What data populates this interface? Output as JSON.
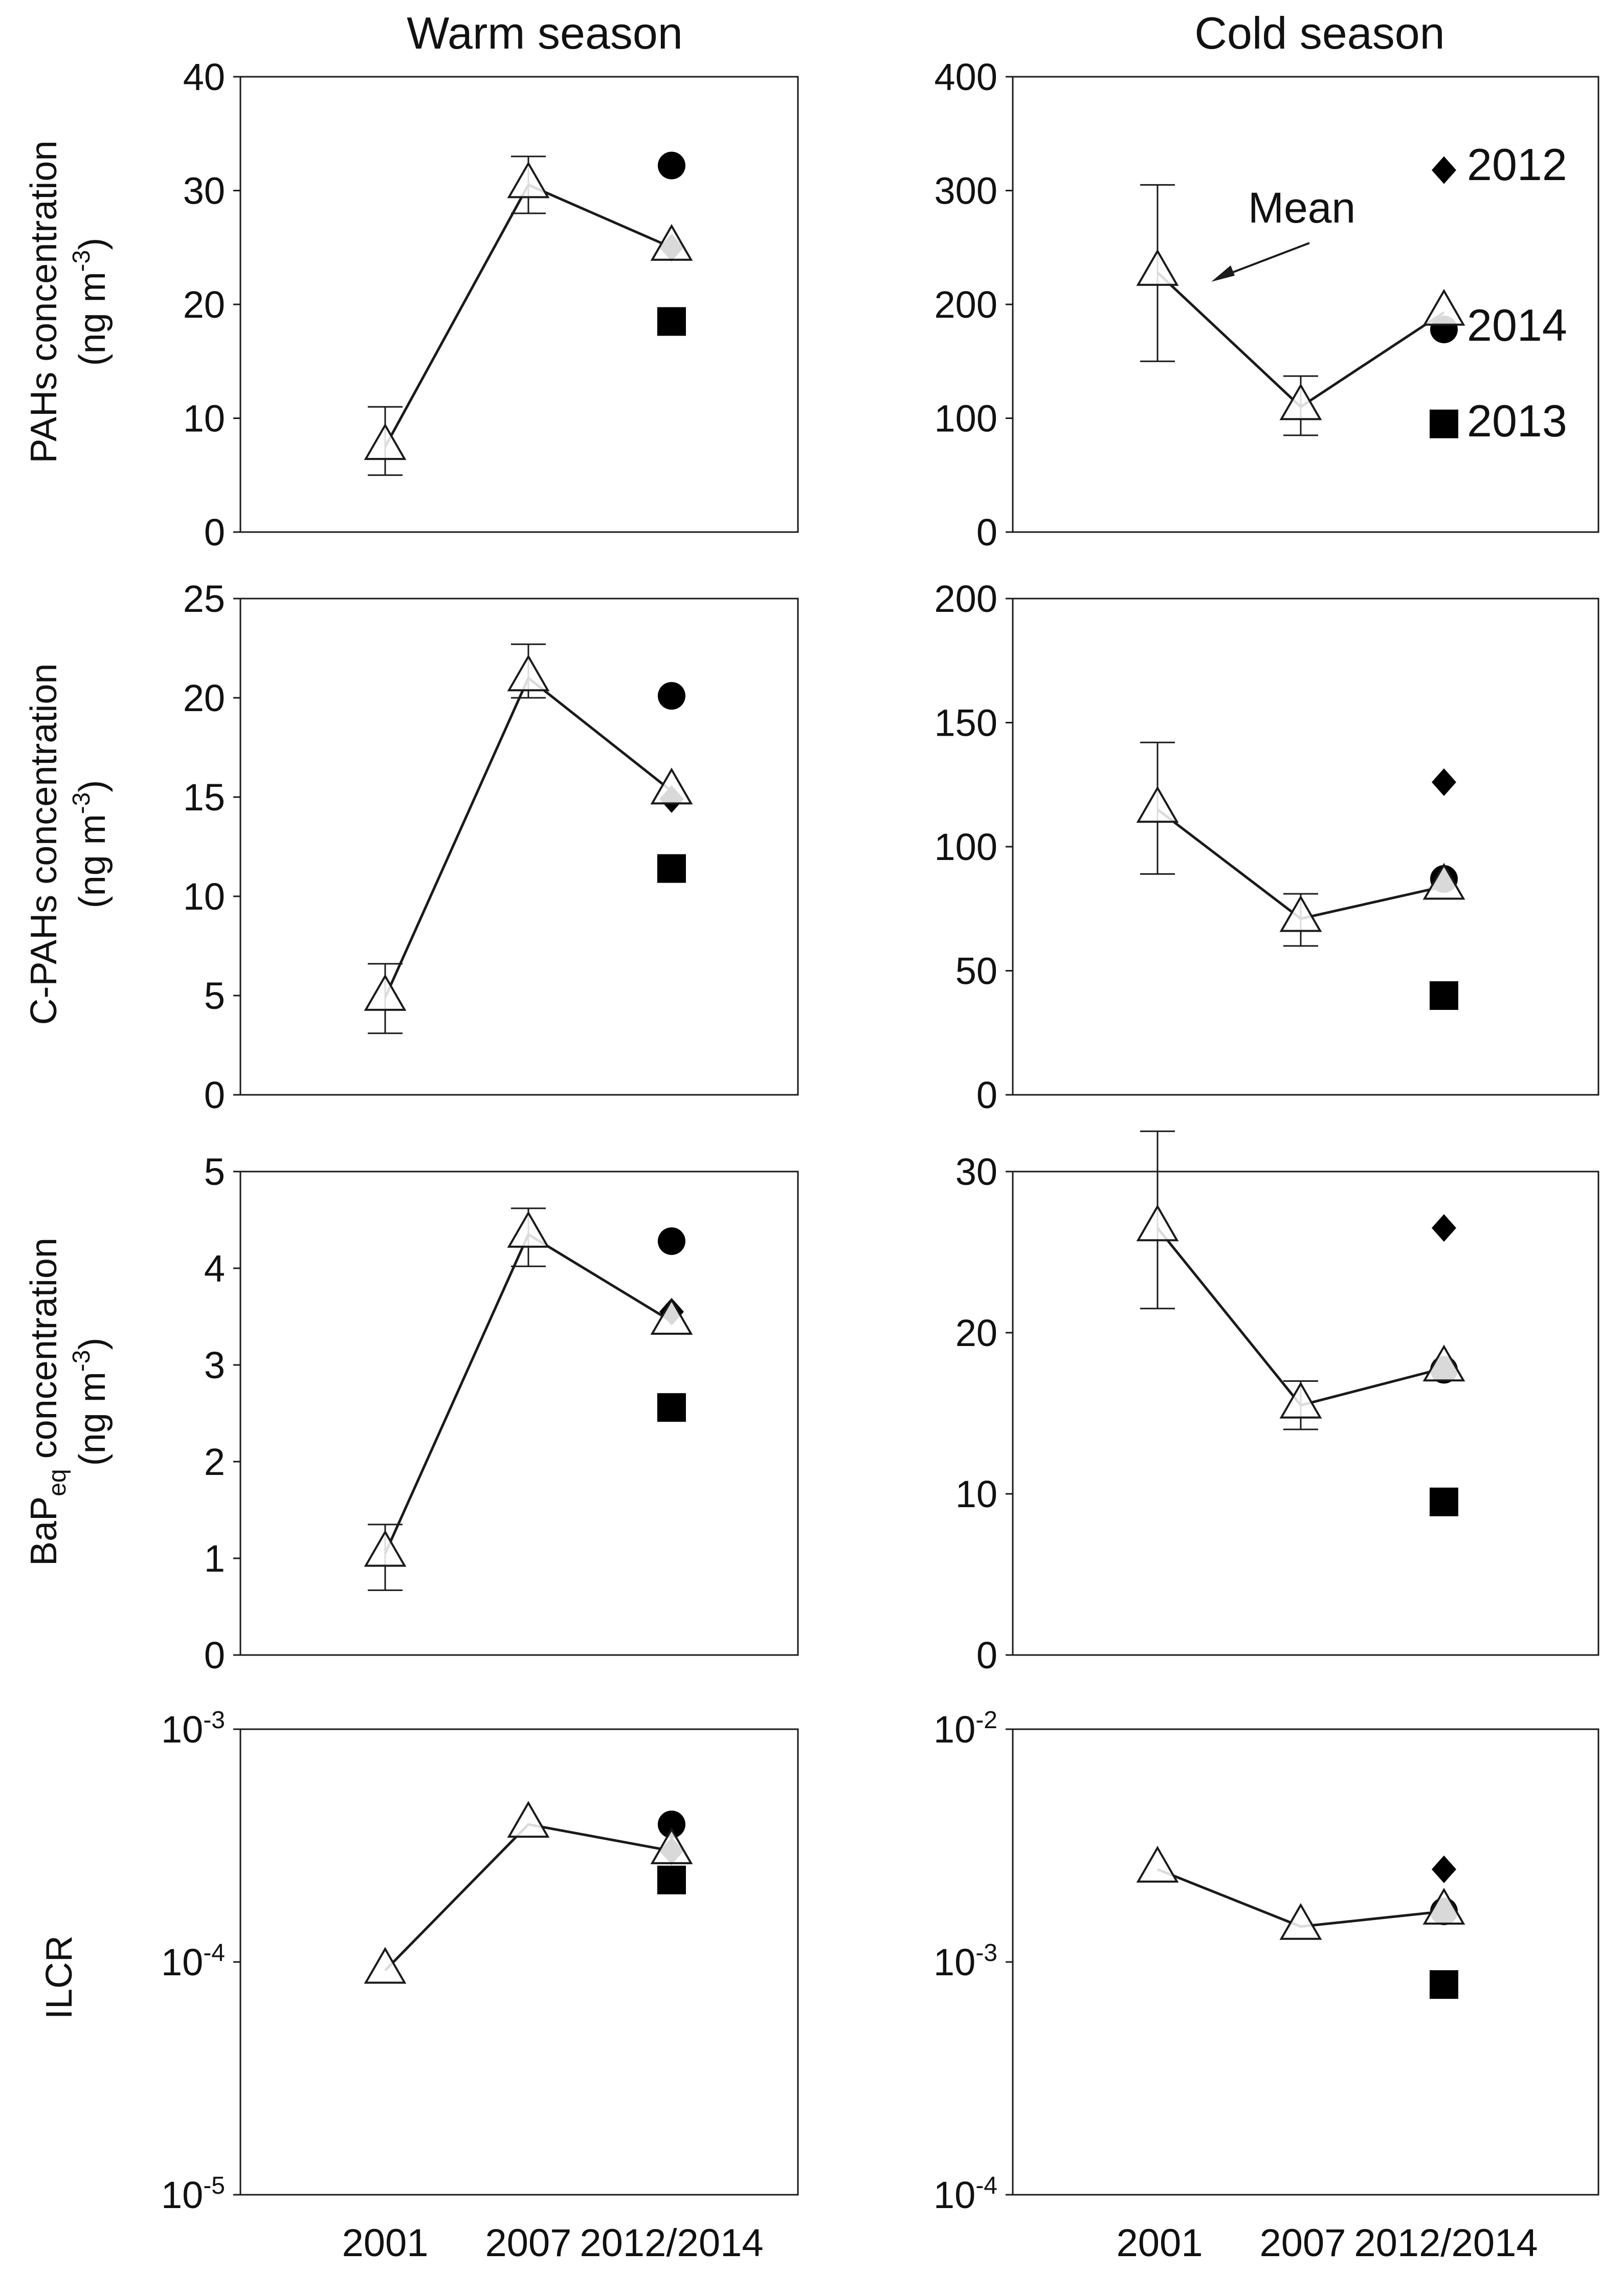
{
  "figure": {
    "column_titles": [
      "Warm season",
      "Cold season"
    ],
    "x_categories": [
      "2001",
      "2007",
      "2012/2014"
    ],
    "row_ylabels": [
      {
        "line1": "PAHs concentration",
        "line2": "(ng m",
        "sup": "-3",
        "close": ")"
      },
      {
        "line1": "C-PAHs concentration",
        "line2": "(ng m",
        "sup": "-3",
        "close": ")"
      },
      {
        "line1_main": "BaP",
        "line1_sub": "eq",
        "line1_rest": " concentration",
        "line2": "(ng m",
        "sup": "-3",
        "close": ")"
      },
      {
        "line1": "ILCR"
      }
    ],
    "legend": {
      "mean_label": "Mean",
      "year_labels": [
        "2012",
        "2014",
        "2013"
      ]
    },
    "colors": {
      "line": "#1a1a1a",
      "marker_fill": "#ffffff",
      "solid_marker": "#000000",
      "axis": "#1a1a1a"
    }
  },
  "chart_data": [
    {
      "type": "scatter",
      "row": 0,
      "col": 0,
      "title": "Warm season",
      "ylabel": "PAHs concentration (ng m-3)",
      "ylim": [
        0,
        40
      ],
      "yticks": [
        {
          "v": 0,
          "label": "0"
        },
        {
          "v": 10,
          "label": "10"
        },
        {
          "v": 20,
          "label": "20"
        },
        {
          "v": 30,
          "label": "30"
        },
        {
          "v": 40,
          "label": "40"
        }
      ],
      "series": [
        {
          "name": "Mean",
          "marker": "triangle",
          "x": [
            "2001",
            "2007",
            "2012/2014"
          ],
          "values": [
            7.5,
            30.5,
            25
          ],
          "err_low": [
            5,
            28,
            null
          ],
          "err_high": [
            11,
            33,
            null
          ]
        },
        {
          "name": "2012",
          "marker": "diamond",
          "x": [
            "2012/2014"
          ],
          "values": [
            25
          ]
        },
        {
          "name": "2014",
          "marker": "circle",
          "x": [
            "2012/2014"
          ],
          "values": [
            32.2
          ]
        },
        {
          "name": "2013",
          "marker": "square",
          "x": [
            "2012/2014"
          ],
          "values": [
            18.5
          ]
        }
      ]
    },
    {
      "type": "scatter",
      "row": 0,
      "col": 1,
      "title": "Cold season",
      "ylabel": "PAHs concentration (ng m-3)",
      "ylim": [
        0,
        400
      ],
      "yticks": [
        {
          "v": 0,
          "label": "0"
        },
        {
          "v": 100,
          "label": "100"
        },
        {
          "v": 200,
          "label": "200"
        },
        {
          "v": 300,
          "label": "300"
        },
        {
          "v": 400,
          "label": "400"
        }
      ],
      "series": [
        {
          "name": "Mean",
          "marker": "triangle",
          "x": [
            "2001",
            "2007",
            "2012/2014"
          ],
          "values": [
            228,
            110,
            193
          ],
          "err_low": [
            150,
            85,
            null
          ],
          "err_high": [
            305,
            137,
            null
          ]
        },
        {
          "name": "2012",
          "marker": "diamond",
          "x": [
            "2012/2014"
          ],
          "values": [
            318
          ]
        },
        {
          "name": "2014",
          "marker": "circle",
          "x": [
            "2012/2014"
          ],
          "values": [
            178
          ]
        },
        {
          "name": "2013",
          "marker": "square",
          "x": [
            "2012/2014"
          ],
          "values": [
            95
          ]
        }
      ],
      "annotations": [
        {
          "text": "Mean",
          "arrow_to_category": "2001"
        }
      ]
    },
    {
      "type": "scatter",
      "row": 1,
      "col": 0,
      "title": "Warm season",
      "ylabel": "C-PAHs concentration (ng m-3)",
      "ylim": [
        0,
        25
      ],
      "yticks": [
        {
          "v": 0,
          "label": "0"
        },
        {
          "v": 5,
          "label": "5"
        },
        {
          "v": 10,
          "label": "10"
        },
        {
          "v": 15,
          "label": "15"
        },
        {
          "v": 20,
          "label": "20"
        },
        {
          "v": 25,
          "label": "25"
        }
      ],
      "series": [
        {
          "name": "Mean",
          "marker": "triangle",
          "x": [
            "2001",
            "2007",
            "2012/2014"
          ],
          "values": [
            4.9,
            21,
            15.3
          ],
          "err_low": [
            3.1,
            20,
            null
          ],
          "err_high": [
            6.6,
            22.7,
            null
          ]
        },
        {
          "name": "2012",
          "marker": "diamond",
          "x": [
            "2012/2014"
          ],
          "values": [
            14.9
          ]
        },
        {
          "name": "2014",
          "marker": "circle",
          "x": [
            "2012/2014"
          ],
          "values": [
            20.1
          ]
        },
        {
          "name": "2013",
          "marker": "square",
          "x": [
            "2012/2014"
          ],
          "values": [
            11.4
          ]
        }
      ]
    },
    {
      "type": "scatter",
      "row": 1,
      "col": 1,
      "title": "Cold season",
      "ylabel": "C-PAHs concentration (ng m-3)",
      "ylim": [
        0,
        200
      ],
      "yticks": [
        {
          "v": 0,
          "label": "0"
        },
        {
          "v": 50,
          "label": "50"
        },
        {
          "v": 100,
          "label": "100"
        },
        {
          "v": 150,
          "label": "150"
        },
        {
          "v": 200,
          "label": "200"
        }
      ],
      "series": [
        {
          "name": "Mean",
          "marker": "triangle",
          "x": [
            "2001",
            "2007",
            "2012/2014"
          ],
          "values": [
            115,
            71,
            84
          ],
          "err_low": [
            89,
            60,
            null
          ],
          "err_high": [
            142,
            81,
            null
          ]
        },
        {
          "name": "2012",
          "marker": "diamond",
          "x": [
            "2012/2014"
          ],
          "values": [
            126
          ]
        },
        {
          "name": "2014",
          "marker": "circle",
          "x": [
            "2012/2014"
          ],
          "values": [
            87
          ]
        },
        {
          "name": "2013",
          "marker": "square",
          "x": [
            "2012/2014"
          ],
          "values": [
            40
          ]
        }
      ]
    },
    {
      "type": "scatter",
      "row": 2,
      "col": 0,
      "title": "Warm season",
      "ylabel": "BaPeq concentration (ng m-3)",
      "ylim": [
        0,
        5
      ],
      "yticks": [
        {
          "v": 0,
          "label": "0"
        },
        {
          "v": 1,
          "label": "1"
        },
        {
          "v": 2,
          "label": "2"
        },
        {
          "v": 3,
          "label": "3"
        },
        {
          "v": 4,
          "label": "4"
        },
        {
          "v": 5,
          "label": "5"
        }
      ],
      "series": [
        {
          "name": "Mean",
          "marker": "triangle",
          "x": [
            "2001",
            "2007",
            "2012/2014"
          ],
          "values": [
            1.05,
            4.35,
            3.45
          ],
          "err_low": [
            0.67,
            4.02,
            null
          ],
          "err_high": [
            1.35,
            4.62,
            null
          ]
        },
        {
          "name": "2012",
          "marker": "diamond",
          "x": [
            "2012/2014"
          ],
          "values": [
            3.55
          ]
        },
        {
          "name": "2014",
          "marker": "circle",
          "x": [
            "2012/2014"
          ],
          "values": [
            4.28
          ]
        },
        {
          "name": "2013",
          "marker": "square",
          "x": [
            "2012/2014"
          ],
          "values": [
            2.56
          ]
        }
      ]
    },
    {
      "type": "scatter",
      "row": 2,
      "col": 1,
      "title": "Cold season",
      "ylabel": "BaPeq concentration (ng m-3)",
      "ylim": [
        0,
        30
      ],
      "yticks": [
        {
          "v": 0,
          "label": "0"
        },
        {
          "v": 10,
          "label": "10"
        },
        {
          "v": 20,
          "label": "20"
        },
        {
          "v": 30,
          "label": "30"
        }
      ],
      "series": [
        {
          "name": "Mean",
          "marker": "triangle",
          "x": [
            "2001",
            "2007",
            "2012/2014"
          ],
          "values": [
            26.5,
            15.5,
            17.8
          ],
          "err_low": [
            21.5,
            14,
            null
          ],
          "err_high": [
            32.5,
            17,
            null
          ]
        },
        {
          "name": "2012",
          "marker": "diamond",
          "x": [
            "2012/2014"
          ],
          "values": [
            26.5
          ]
        },
        {
          "name": "2014",
          "marker": "circle",
          "x": [
            "2012/2014"
          ],
          "values": [
            17.7
          ]
        },
        {
          "name": "2013",
          "marker": "square",
          "x": [
            "2012/2014"
          ],
          "values": [
            9.5
          ]
        }
      ]
    },
    {
      "type": "scatter",
      "row": 3,
      "col": 0,
      "title": "Warm season",
      "ylabel": "ILCR",
      "yscale": "log",
      "ylim": [
        1e-05,
        0.001
      ],
      "yticks": [
        {
          "v": 1e-05,
          "base": "10",
          "exp": "-5"
        },
        {
          "v": 0.0001,
          "base": "10",
          "exp": "-4"
        },
        {
          "v": 0.001,
          "base": "10",
          "exp": "-3"
        }
      ],
      "series": [
        {
          "name": "Mean",
          "marker": "triangle",
          "x": [
            "2001",
            "2007",
            "2012/2014"
          ],
          "values": [
            9.2e-05,
            0.00039,
            0.0003
          ]
        },
        {
          "name": "2012",
          "marker": "diamond",
          "x": [
            "2012/2014"
          ],
          "values": [
            0.0003
          ]
        },
        {
          "name": "2014",
          "marker": "circle",
          "x": [
            "2012/2014"
          ],
          "values": [
            0.00039
          ]
        },
        {
          "name": "2013",
          "marker": "square",
          "x": [
            "2012/2014"
          ],
          "values": [
            0.000225
          ]
        }
      ]
    },
    {
      "type": "scatter",
      "row": 3,
      "col": 1,
      "title": "Cold season",
      "ylabel": "ILCR",
      "yscale": "log",
      "ylim": [
        0.0001,
        0.01
      ],
      "yticks": [
        {
          "v": 0.0001,
          "base": "10",
          "exp": "-4"
        },
        {
          "v": 0.001,
          "base": "10",
          "exp": "-3"
        },
        {
          "v": 0.01,
          "base": "10",
          "exp": "-2"
        }
      ],
      "series": [
        {
          "name": "Mean",
          "marker": "triangle",
          "x": [
            "2001",
            "2007",
            "2012/2014"
          ],
          "values": [
            0.0025,
            0.00142,
            0.00165
          ]
        },
        {
          "name": "2012",
          "marker": "diamond",
          "x": [
            "2012/2014"
          ],
          "values": [
            0.0025
          ]
        },
        {
          "name": "2014",
          "marker": "circle",
          "x": [
            "2012/2014"
          ],
          "values": [
            0.00165
          ]
        },
        {
          "name": "2013",
          "marker": "square",
          "x": [
            "2012/2014"
          ],
          "values": [
            0.0008
          ]
        }
      ]
    }
  ]
}
